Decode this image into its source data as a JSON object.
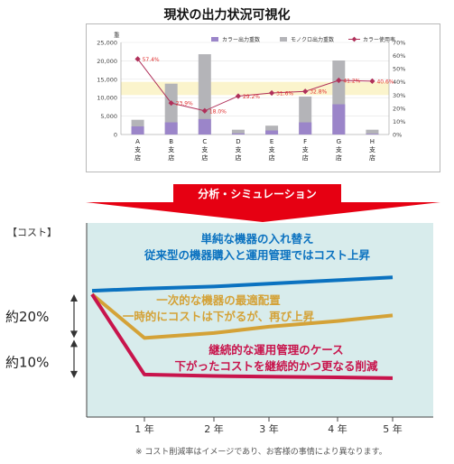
{
  "title": "現状の出力状況可視化",
  "banner": "分析・シミュレーション",
  "colors": {
    "color_bar": "#9b85c9",
    "mono_bar": "#b4b4b8",
    "rate_line": "#b0305a",
    "band": "#fbf4cc",
    "bg_teal": "#d8ecec",
    "blue": "#0b72c0",
    "orange": "#d4a237",
    "crimson": "#c8144c",
    "arrow_red": "#e60012"
  },
  "chart_data": [
    {
      "type": "bar",
      "categories": [
        "A\n支\n店",
        "B\n支\n店",
        "C\n支\n店",
        "D\n支\n店",
        "E\n支\n店",
        "F\n支\n店",
        "G\n支\n店",
        "H\n支\n店"
      ],
      "series": [
        {
          "name": "カラー出力重数",
          "kind": "bar",
          "axis": "left",
          "values": [
            2200,
            3300,
            4200,
            300,
            1100,
            3300,
            8200,
            200
          ]
        },
        {
          "name": "モノクロ出力重数",
          "kind": "bar",
          "axis": "left",
          "values": [
            4000,
            13800,
            21800,
            1300,
            2400,
            10300,
            20100,
            1300
          ]
        },
        {
          "name": "カラー使用率",
          "kind": "line",
          "axis": "right",
          "values": [
            57.4,
            23.9,
            18.0,
            29.2,
            31.6,
            32.8,
            41.2,
            40.6
          ],
          "labels": [
            "57.4%",
            "23.9%",
            "18.0%",
            "29.2%",
            "31.6%",
            "32.8%",
            "41.2%",
            "40.6%"
          ]
        }
      ],
      "y_unit": "重",
      "yticks": [
        "0",
        "5,000",
        "10,000",
        "15,000",
        "20,000",
        "25,000"
      ],
      "ylim": [
        0,
        25000
      ],
      "y2ticks": [
        "0%",
        "10%",
        "20%",
        "30%",
        "40%",
        "50%",
        "60%",
        "70%"
      ],
      "y2lim": [
        0,
        70
      ],
      "legend": "top"
    },
    {
      "type": "line",
      "ylabel": "【コスト】",
      "xticks": [
        "1 年",
        "2 年",
        "3 年",
        "4 年",
        "5 年"
      ],
      "x": [
        0,
        1,
        2,
        3,
        4,
        5
      ],
      "series": [
        {
          "name": "blue",
          "values": [
            0.5,
            0.8,
            1.1,
            1.5,
            2.0,
            2.4
          ]
        },
        {
          "name": "orange",
          "values": [
            0,
            -6.2,
            -5.5,
            -4.6,
            -3.8,
            -3.0
          ]
        },
        {
          "name": "crimson",
          "values": [
            0,
            -11.4,
            -11.6,
            -11.7,
            -11.8,
            -11.9
          ]
        }
      ],
      "annotations": [
        {
          "line1": "単純な機器の入れ替え",
          "line2": "従来型の機器購入と運用管理ではコスト上昇"
        },
        {
          "line1": "一次的な機器の最適配置",
          "line2": "一時的にコストは下がるが、再び上昇"
        },
        {
          "line1": "継続的な運用管理のケース",
          "line2": "下がったコストを継続的かつ更なる削減"
        }
      ],
      "brackets": [
        "約20%",
        "約10%"
      ],
      "footnote": "※ コスト削減率はイメージであり、お客様の事情により異なります。"
    }
  ]
}
